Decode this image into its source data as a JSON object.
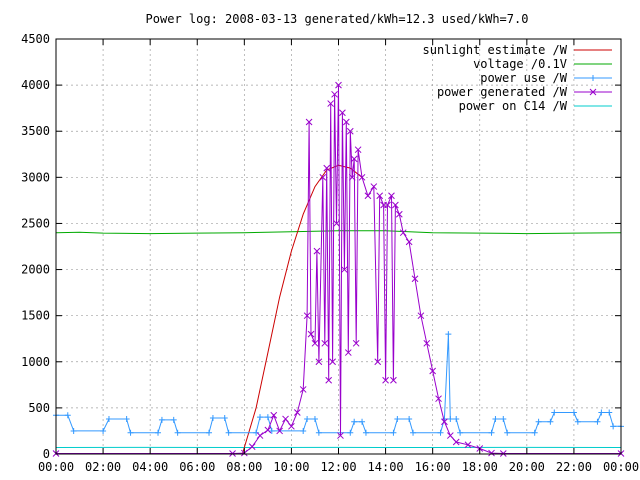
{
  "chart_data": {
    "type": "line",
    "title": "Power log: 2008-03-13 generated/kWh=12.3 used/kWh=7.0",
    "xlabel": "",
    "ylabel": "",
    "xlim": [
      "00:00",
      "24:00"
    ],
    "ylim": [
      0,
      4500
    ],
    "grid": true,
    "legend_position": "top-right",
    "x_ticks": [
      "00:00",
      "02:00",
      "04:00",
      "06:00",
      "08:00",
      "10:00",
      "12:00",
      "14:00",
      "16:00",
      "18:00",
      "20:00",
      "22:00",
      "00:00"
    ],
    "y_ticks": [
      "0",
      "500",
      "1000",
      "1500",
      "2000",
      "2500",
      "3000",
      "3500",
      "4000",
      "4500"
    ],
    "series": [
      {
        "name": "sunlight estimate /W",
        "color": "#cc0000",
        "style": "line",
        "points": [
          [
            "07:55",
            0
          ],
          [
            "08:30",
            500
          ],
          [
            "09:00",
            1100
          ],
          [
            "09:30",
            1700
          ],
          [
            "10:00",
            2200
          ],
          [
            "10:30",
            2600
          ],
          [
            "11:00",
            2900
          ],
          [
            "11:30",
            3080
          ],
          [
            "12:00",
            3130
          ],
          [
            "12:30",
            3100
          ],
          [
            "13:00",
            3000
          ]
        ]
      },
      {
        "name": "voltage /0.1V",
        "color": "#00aa00",
        "style": "line",
        "points": [
          [
            "00:00",
            2400
          ],
          [
            "01:00",
            2405
          ],
          [
            "02:00",
            2395
          ],
          [
            "04:00",
            2390
          ],
          [
            "06:00",
            2395
          ],
          [
            "08:00",
            2400
          ],
          [
            "10:00",
            2410
          ],
          [
            "12:00",
            2420
          ],
          [
            "14:00",
            2420
          ],
          [
            "16:00",
            2400
          ],
          [
            "18:00",
            2395
          ],
          [
            "20:00",
            2390
          ],
          [
            "22:00",
            2395
          ],
          [
            "24:00",
            2400
          ]
        ]
      },
      {
        "name": "power use /W",
        "color": "#3399ff",
        "style": "linepoints-plus",
        "points": [
          [
            "00:00",
            420
          ],
          [
            "00:30",
            420
          ],
          [
            "00:45",
            250
          ],
          [
            "02:00",
            250
          ],
          [
            "02:15",
            380
          ],
          [
            "03:00",
            380
          ],
          [
            "03:10",
            230
          ],
          [
            "04:20",
            230
          ],
          [
            "04:30",
            370
          ],
          [
            "05:00",
            370
          ],
          [
            "05:10",
            230
          ],
          [
            "06:30",
            230
          ],
          [
            "06:40",
            390
          ],
          [
            "07:10",
            390
          ],
          [
            "07:20",
            230
          ],
          [
            "08:30",
            230
          ],
          [
            "08:40",
            400
          ],
          [
            "09:00",
            400
          ],
          [
            "09:10",
            250
          ],
          [
            "10:30",
            250
          ],
          [
            "10:40",
            380
          ],
          [
            "11:00",
            380
          ],
          [
            "11:10",
            230
          ],
          [
            "12:30",
            230
          ],
          [
            "12:40",
            350
          ],
          [
            "13:00",
            350
          ],
          [
            "13:10",
            230
          ],
          [
            "14:20",
            230
          ],
          [
            "14:30",
            380
          ],
          [
            "15:00",
            380
          ],
          [
            "15:10",
            230
          ],
          [
            "16:20",
            230
          ],
          [
            "16:30",
            380
          ],
          [
            "16:40",
            1300
          ],
          [
            "16:45",
            380
          ],
          [
            "17:00",
            380
          ],
          [
            "17:10",
            230
          ],
          [
            "18:30",
            230
          ],
          [
            "18:40",
            380
          ],
          [
            "19:00",
            380
          ],
          [
            "19:10",
            230
          ],
          [
            "20:20",
            230
          ],
          [
            "20:30",
            350
          ],
          [
            "21:00",
            350
          ],
          [
            "21:10",
            450
          ],
          [
            "22:00",
            450
          ],
          [
            "22:10",
            350
          ],
          [
            "23:00",
            350
          ],
          [
            "23:10",
            450
          ],
          [
            "23:30",
            450
          ],
          [
            "23:40",
            300
          ],
          [
            "24:00",
            300
          ]
        ]
      },
      {
        "name": "power generated /W",
        "color": "#9900cc",
        "style": "linepoints-x",
        "points": [
          [
            "00:00",
            5
          ],
          [
            "07:30",
            5
          ],
          [
            "08:00",
            10
          ],
          [
            "08:20",
            80
          ],
          [
            "08:40",
            200
          ],
          [
            "09:00",
            260
          ],
          [
            "09:15",
            420
          ],
          [
            "09:30",
            250
          ],
          [
            "09:45",
            380
          ],
          [
            "10:00",
            300
          ],
          [
            "10:15",
            450
          ],
          [
            "10:30",
            700
          ],
          [
            "10:40",
            1500
          ],
          [
            "10:45",
            3600
          ],
          [
            "10:50",
            1300
          ],
          [
            "11:00",
            1200
          ],
          [
            "11:05",
            2200
          ],
          [
            "11:10",
            1000
          ],
          [
            "11:20",
            3000
          ],
          [
            "11:25",
            1200
          ],
          [
            "11:30",
            3100
          ],
          [
            "11:35",
            800
          ],
          [
            "11:40",
            3800
          ],
          [
            "11:45",
            1000
          ],
          [
            "11:50",
            3900
          ],
          [
            "11:55",
            2500
          ],
          [
            "12:00",
            4000
          ],
          [
            "12:05",
            200
          ],
          [
            "12:10",
            3700
          ],
          [
            "12:15",
            2000
          ],
          [
            "12:20",
            3600
          ],
          [
            "12:25",
            1100
          ],
          [
            "12:30",
            3500
          ],
          [
            "12:35",
            3000
          ],
          [
            "12:40",
            3200
          ],
          [
            "12:45",
            1200
          ],
          [
            "12:50",
            3300
          ],
          [
            "13:00",
            3000
          ],
          [
            "13:15",
            2800
          ],
          [
            "13:30",
            2900
          ],
          [
            "13:40",
            1000
          ],
          [
            "13:45",
            2800
          ],
          [
            "13:55",
            2700
          ],
          [
            "14:00",
            800
          ],
          [
            "14:05",
            2700
          ],
          [
            "14:15",
            2800
          ],
          [
            "14:20",
            800
          ],
          [
            "14:25",
            2700
          ],
          [
            "14:35",
            2600
          ],
          [
            "14:45",
            2400
          ],
          [
            "15:00",
            2300
          ],
          [
            "15:15",
            1900
          ],
          [
            "15:30",
            1500
          ],
          [
            "15:45",
            1200
          ],
          [
            "16:00",
            900
          ],
          [
            "16:15",
            600
          ],
          [
            "16:30",
            350
          ],
          [
            "16:45",
            200
          ],
          [
            "17:00",
            130
          ],
          [
            "17:30",
            100
          ],
          [
            "18:00",
            60
          ],
          [
            "18:30",
            10
          ],
          [
            "19:00",
            5
          ],
          [
            "24:00",
            5
          ]
        ]
      },
      {
        "name": "power on C14 /W",
        "color": "#00cccc",
        "style": "line",
        "points": [
          [
            "00:00",
            70
          ],
          [
            "04:00",
            72
          ],
          [
            "08:00",
            70
          ],
          [
            "12:00",
            72
          ],
          [
            "16:00",
            70
          ],
          [
            "20:00",
            72
          ],
          [
            "24:00",
            70
          ]
        ]
      }
    ]
  }
}
